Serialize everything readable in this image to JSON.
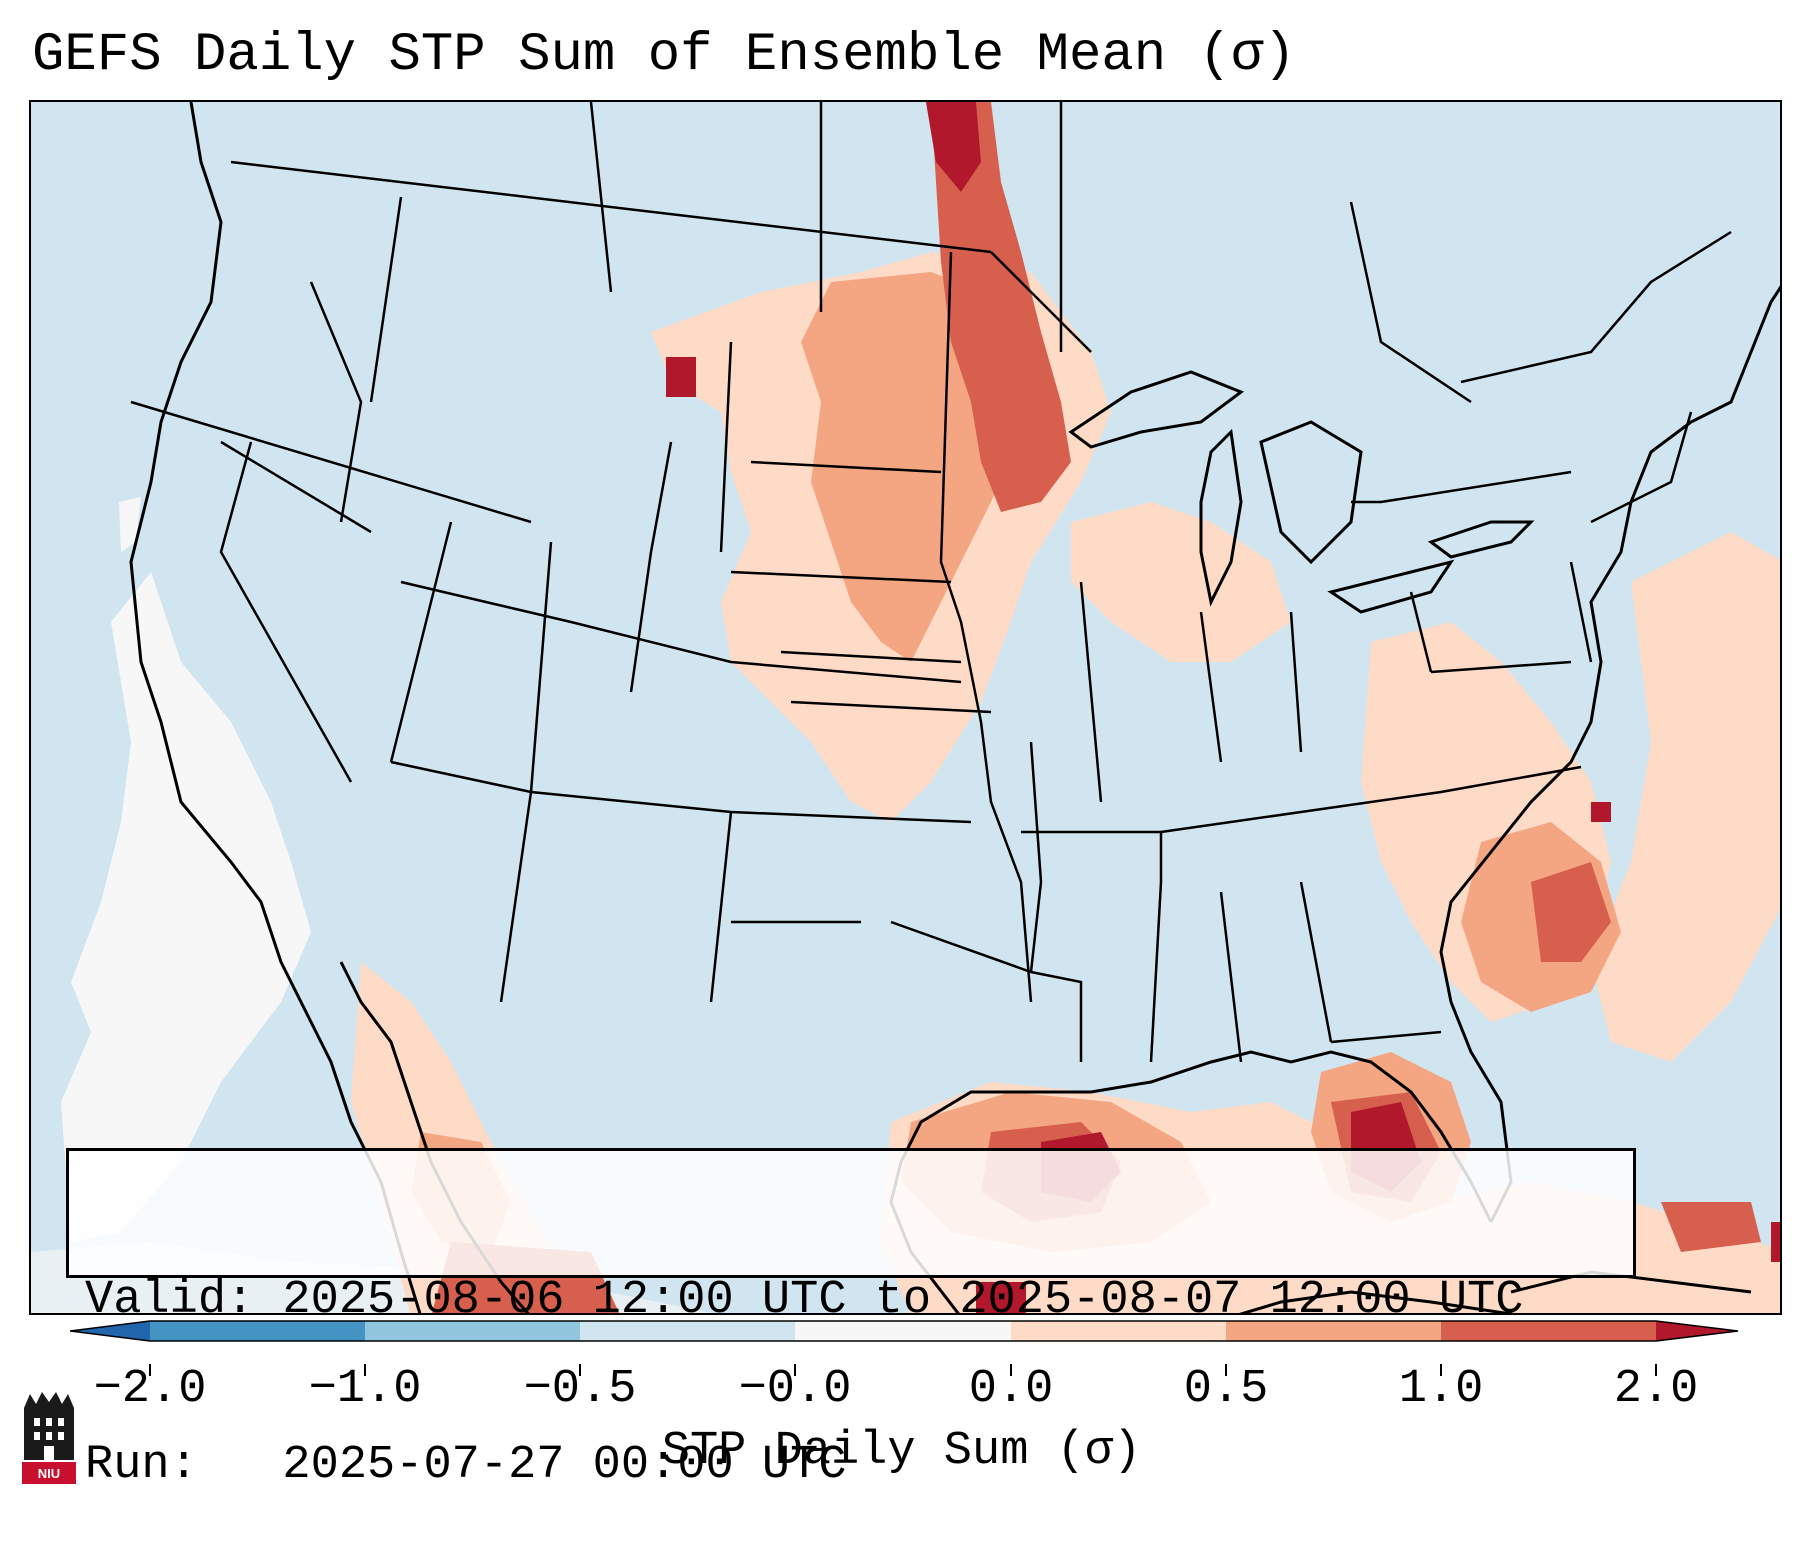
{
  "title": "GEFS Daily STP Sum of Ensemble Mean (σ)",
  "info": {
    "valid_line": "Valid: 2025-08-06 12:00 UTC to 2025-08-07 12:00 UTC",
    "run_line": "Run:   2025-07-27 00:00 UTC"
  },
  "colorbar": {
    "label": "STP Daily Sum (σ)",
    "ticks": [
      "−2.0",
      "−1.0",
      "−0.5",
      "−0.0",
      "0.0",
      "0.5",
      "1.0",
      "2.0"
    ],
    "colors": [
      "#2166ac",
      "#4393c3",
      "#92c5de",
      "#d1e5f0",
      "#f7f7f7",
      "#fddbc7",
      "#f4a582",
      "#d6604d",
      "#b2182b"
    ]
  },
  "logo": {
    "text": "NIU",
    "color": "#c8102e"
  },
  "map": {
    "background_color": "#d1e5f0",
    "region": "Continental United States, northern Mexico, Gulf of Mexico, western Atlantic"
  }
}
